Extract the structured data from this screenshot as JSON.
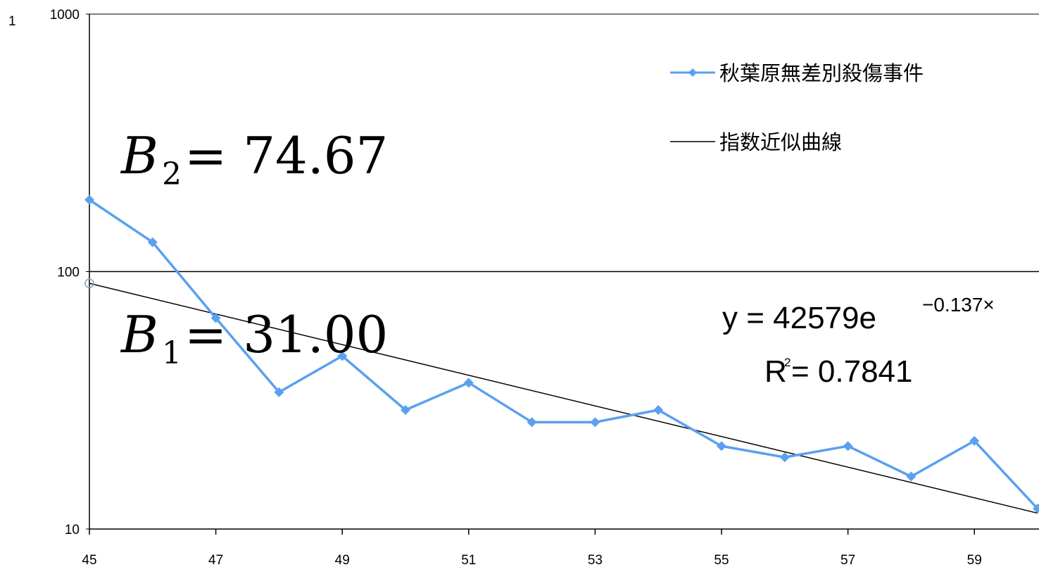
{
  "chart_data": {
    "type": "line",
    "y_scale": "log",
    "x": [
      45,
      46,
      47,
      48,
      49,
      50,
      51,
      52,
      53,
      54,
      55,
      56,
      57,
      58,
      59,
      60
    ],
    "xlim": [
      45,
      60
    ],
    "ylim": [
      10,
      1000
    ],
    "x_tick_labels": [
      "45",
      "47",
      "49",
      "51",
      "53",
      "55",
      "57",
      "59"
    ],
    "y_tick_labels": [
      "10",
      "100",
      "1000"
    ],
    "corner_label": "1",
    "series": [
      {
        "name": "秋葉原無差別殺傷事件",
        "color": "#5aa0ee",
        "marker": "diamond",
        "values": [
          190,
          130,
          66,
          34,
          47,
          29,
          37,
          26,
          26,
          29,
          21,
          19,
          21,
          16,
          22,
          12
        ]
      },
      {
        "name": "指数近似曲線",
        "color": "#000000",
        "type": "trendline",
        "formula": {
          "a": 42579,
          "b": -0.137
        }
      }
    ],
    "reference_line": {
      "y": 100,
      "color": "#000000"
    },
    "reference_point": {
      "x": 45,
      "y": 90
    },
    "legend_position": "top-right",
    "annotations": {
      "equation_prefix": "y = 42579e",
      "equation_exponent": "−0.137×",
      "r_squared_label": "R",
      "r_squared_sup": "2",
      "r_squared_value": " = 0.7841",
      "b2_var": "B",
      "b2_sub": "2",
      "b2_value": " = 74.67",
      "b1_var": "B",
      "b1_sub": "1",
      "b1_value": " = 31.00"
    }
  }
}
